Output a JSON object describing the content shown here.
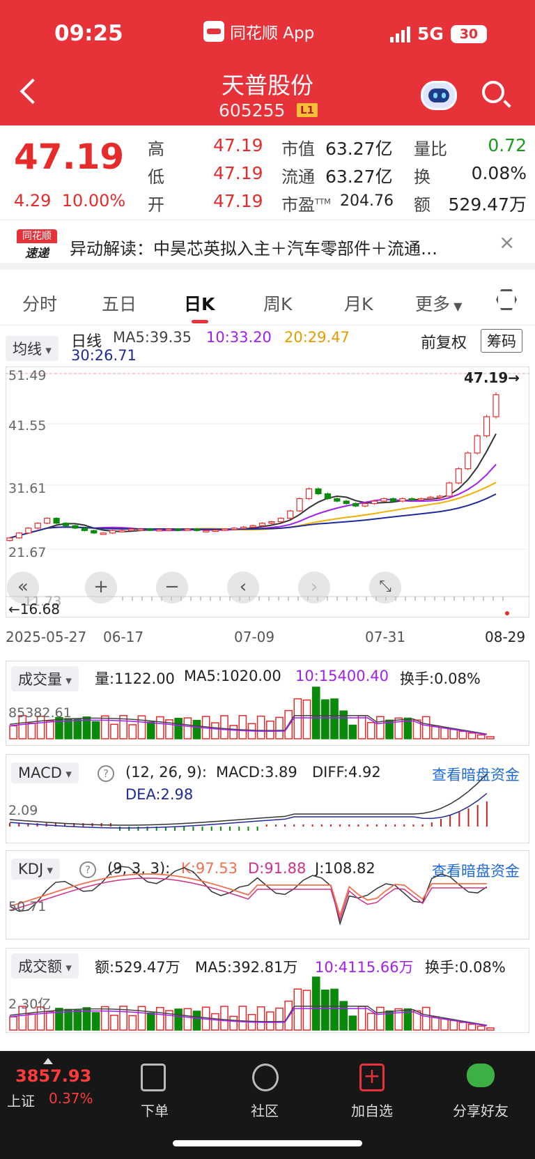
{
  "status": {
    "time": "09:25",
    "app": "同花顺 App",
    "network": "5G",
    "battery": "30"
  },
  "header": {
    "name": "天普股份",
    "code": "605255",
    "level": "L1"
  },
  "quote": {
    "price": "47.19",
    "change": "4.29",
    "change_pct": "10.00%",
    "high_label": "高",
    "high": "47.19",
    "low_label": "低",
    "low": "47.19",
    "open_label": "开",
    "open": "47.19",
    "mcap_label": "市值",
    "mcap": "63.27亿",
    "float_label": "流通",
    "float": "63.27亿",
    "pe_label": "市盈",
    "pe_sup": "TTM",
    "pe": "204.76",
    "vr_label": "量比",
    "vr": "0.72",
    "turn_label": "换",
    "turn": "0.08%",
    "amt_label": "额",
    "amt": "529.47万"
  },
  "news": {
    "logo_top": "同花顺",
    "logo_bottom": "速递",
    "text": "异动解读：中昊芯英拟入主＋汽车零部件＋流通…",
    "close": "×"
  },
  "tabs": [
    "分时",
    "五日",
    "日K",
    "周K",
    "月K",
    "更多"
  ],
  "kchart": {
    "selector": "均线",
    "line_label": "日线",
    "ma5": "MA5:39.35",
    "ma10": "10:33.20",
    "ma20": "20:29.47",
    "ma30": "30:26.71",
    "adjust": "前复权",
    "chips": "筹码",
    "y_ticks": [
      "51.49",
      "41.55",
      "31.61",
      "21.67",
      "11.73"
    ],
    "last_marker": "47.19→",
    "low_marker": "←16.68",
    "dates": [
      "2025-05-27",
      "06-17",
      "07-09",
      "07-31",
      "08-29"
    ]
  },
  "volume": {
    "selector": "成交量",
    "vol": "量:1122.00",
    "ma5": "MA5:1020.00",
    "ma10": "10:15400.40",
    "turn": "换手:0.08%",
    "y_tick": "85382.61"
  },
  "macd": {
    "selector": "MACD",
    "help": "?",
    "params": "(12, 26, 9):",
    "macd": "MACD:3.89",
    "diff": "DIFF:4.92",
    "dea": "DEA:2.98",
    "link": "查看暗盘资金",
    "y_tick": "2.09"
  },
  "kdj": {
    "selector": "KDJ",
    "help": "?",
    "params": "(9, 3, 3):",
    "k": "K:97.53",
    "d": "D:91.88",
    "j": "J:108.82",
    "link": "查看暗盘资金",
    "y_tick": "50.71"
  },
  "amount": {
    "selector": "成交额",
    "amt": "额:529.47万",
    "ma5": "MA5:392.81万",
    "ma10": "10:4115.66万",
    "turn": "换手:0.08%",
    "y_tick": "2.30亿"
  },
  "bottom": {
    "index_value": "3857.93",
    "index_name": "上证",
    "index_pct": "0.37%",
    "order": "下单",
    "community": "社区",
    "watch": "加自选",
    "share": "分享好友"
  },
  "chart_data": {
    "type": "candlestick",
    "title": "天普股份 日K",
    "x": [
      "2025-05-27",
      "06-17",
      "07-09",
      "07-31",
      "08-29"
    ],
    "close_series": [
      18,
      19,
      20,
      21,
      22,
      21,
      20.5,
      20,
      19.5,
      19,
      19,
      19.5,
      19.5,
      19.8,
      19.8,
      19.6,
      19.7,
      19.8,
      19.6,
      19.8,
      19.5,
      19.5,
      19.6,
      19.8,
      20,
      20.2,
      20.5,
      21,
      21.3,
      22,
      23.5,
      26,
      28,
      27,
      26,
      25.5,
      25,
      24.5,
      25,
      25.5,
      26,
      25.5,
      26,
      25.8,
      26,
      26.3,
      26.5,
      29.2,
      32.1,
      35.3,
      38.8,
      42.7,
      47.19
    ],
    "ylim": [
      11.73,
      51.49
    ]
  }
}
